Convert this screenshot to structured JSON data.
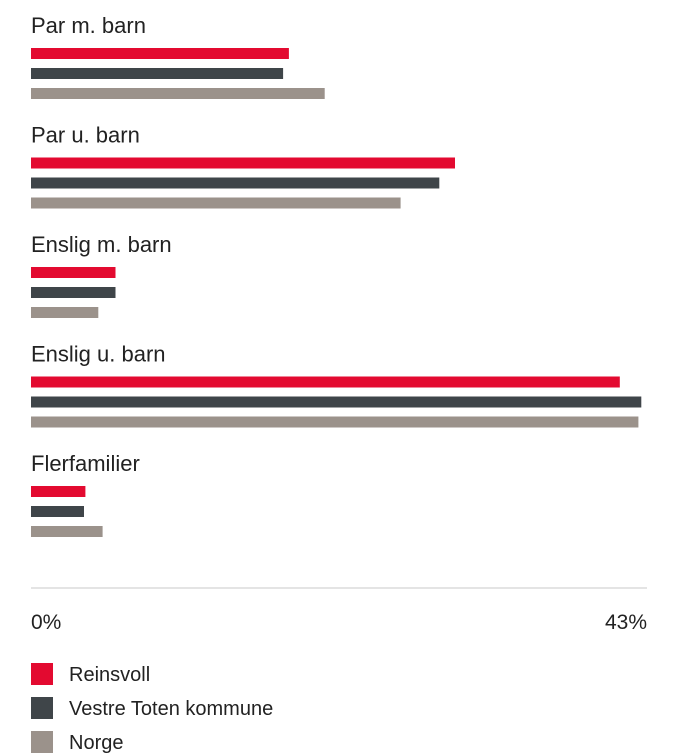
{
  "chart_data": {
    "type": "bar",
    "orientation": "horizontal",
    "categories": [
      "Par m. barn",
      "Par u. barn",
      "Enslig m. barn",
      "Enslig u. barn",
      "Flerfamilier"
    ],
    "series": [
      {
        "name": "Reinsvoll",
        "color": "#e30a30",
        "values": [
          18.0,
          29.6,
          5.9,
          41.1,
          3.8
        ]
      },
      {
        "name": "Vestre Toten kommune",
        "color": "#3f4549",
        "values": [
          17.6,
          28.5,
          5.9,
          42.6,
          3.7
        ]
      },
      {
        "name": "Norge",
        "color": "#9b928b",
        "values": [
          20.5,
          25.8,
          4.7,
          42.4,
          5.0
        ]
      }
    ],
    "xlim": [
      0,
      43
    ],
    "x_ticks": [
      "0%",
      "43%"
    ],
    "legend_position": "bottom-left",
    "grid": false
  }
}
